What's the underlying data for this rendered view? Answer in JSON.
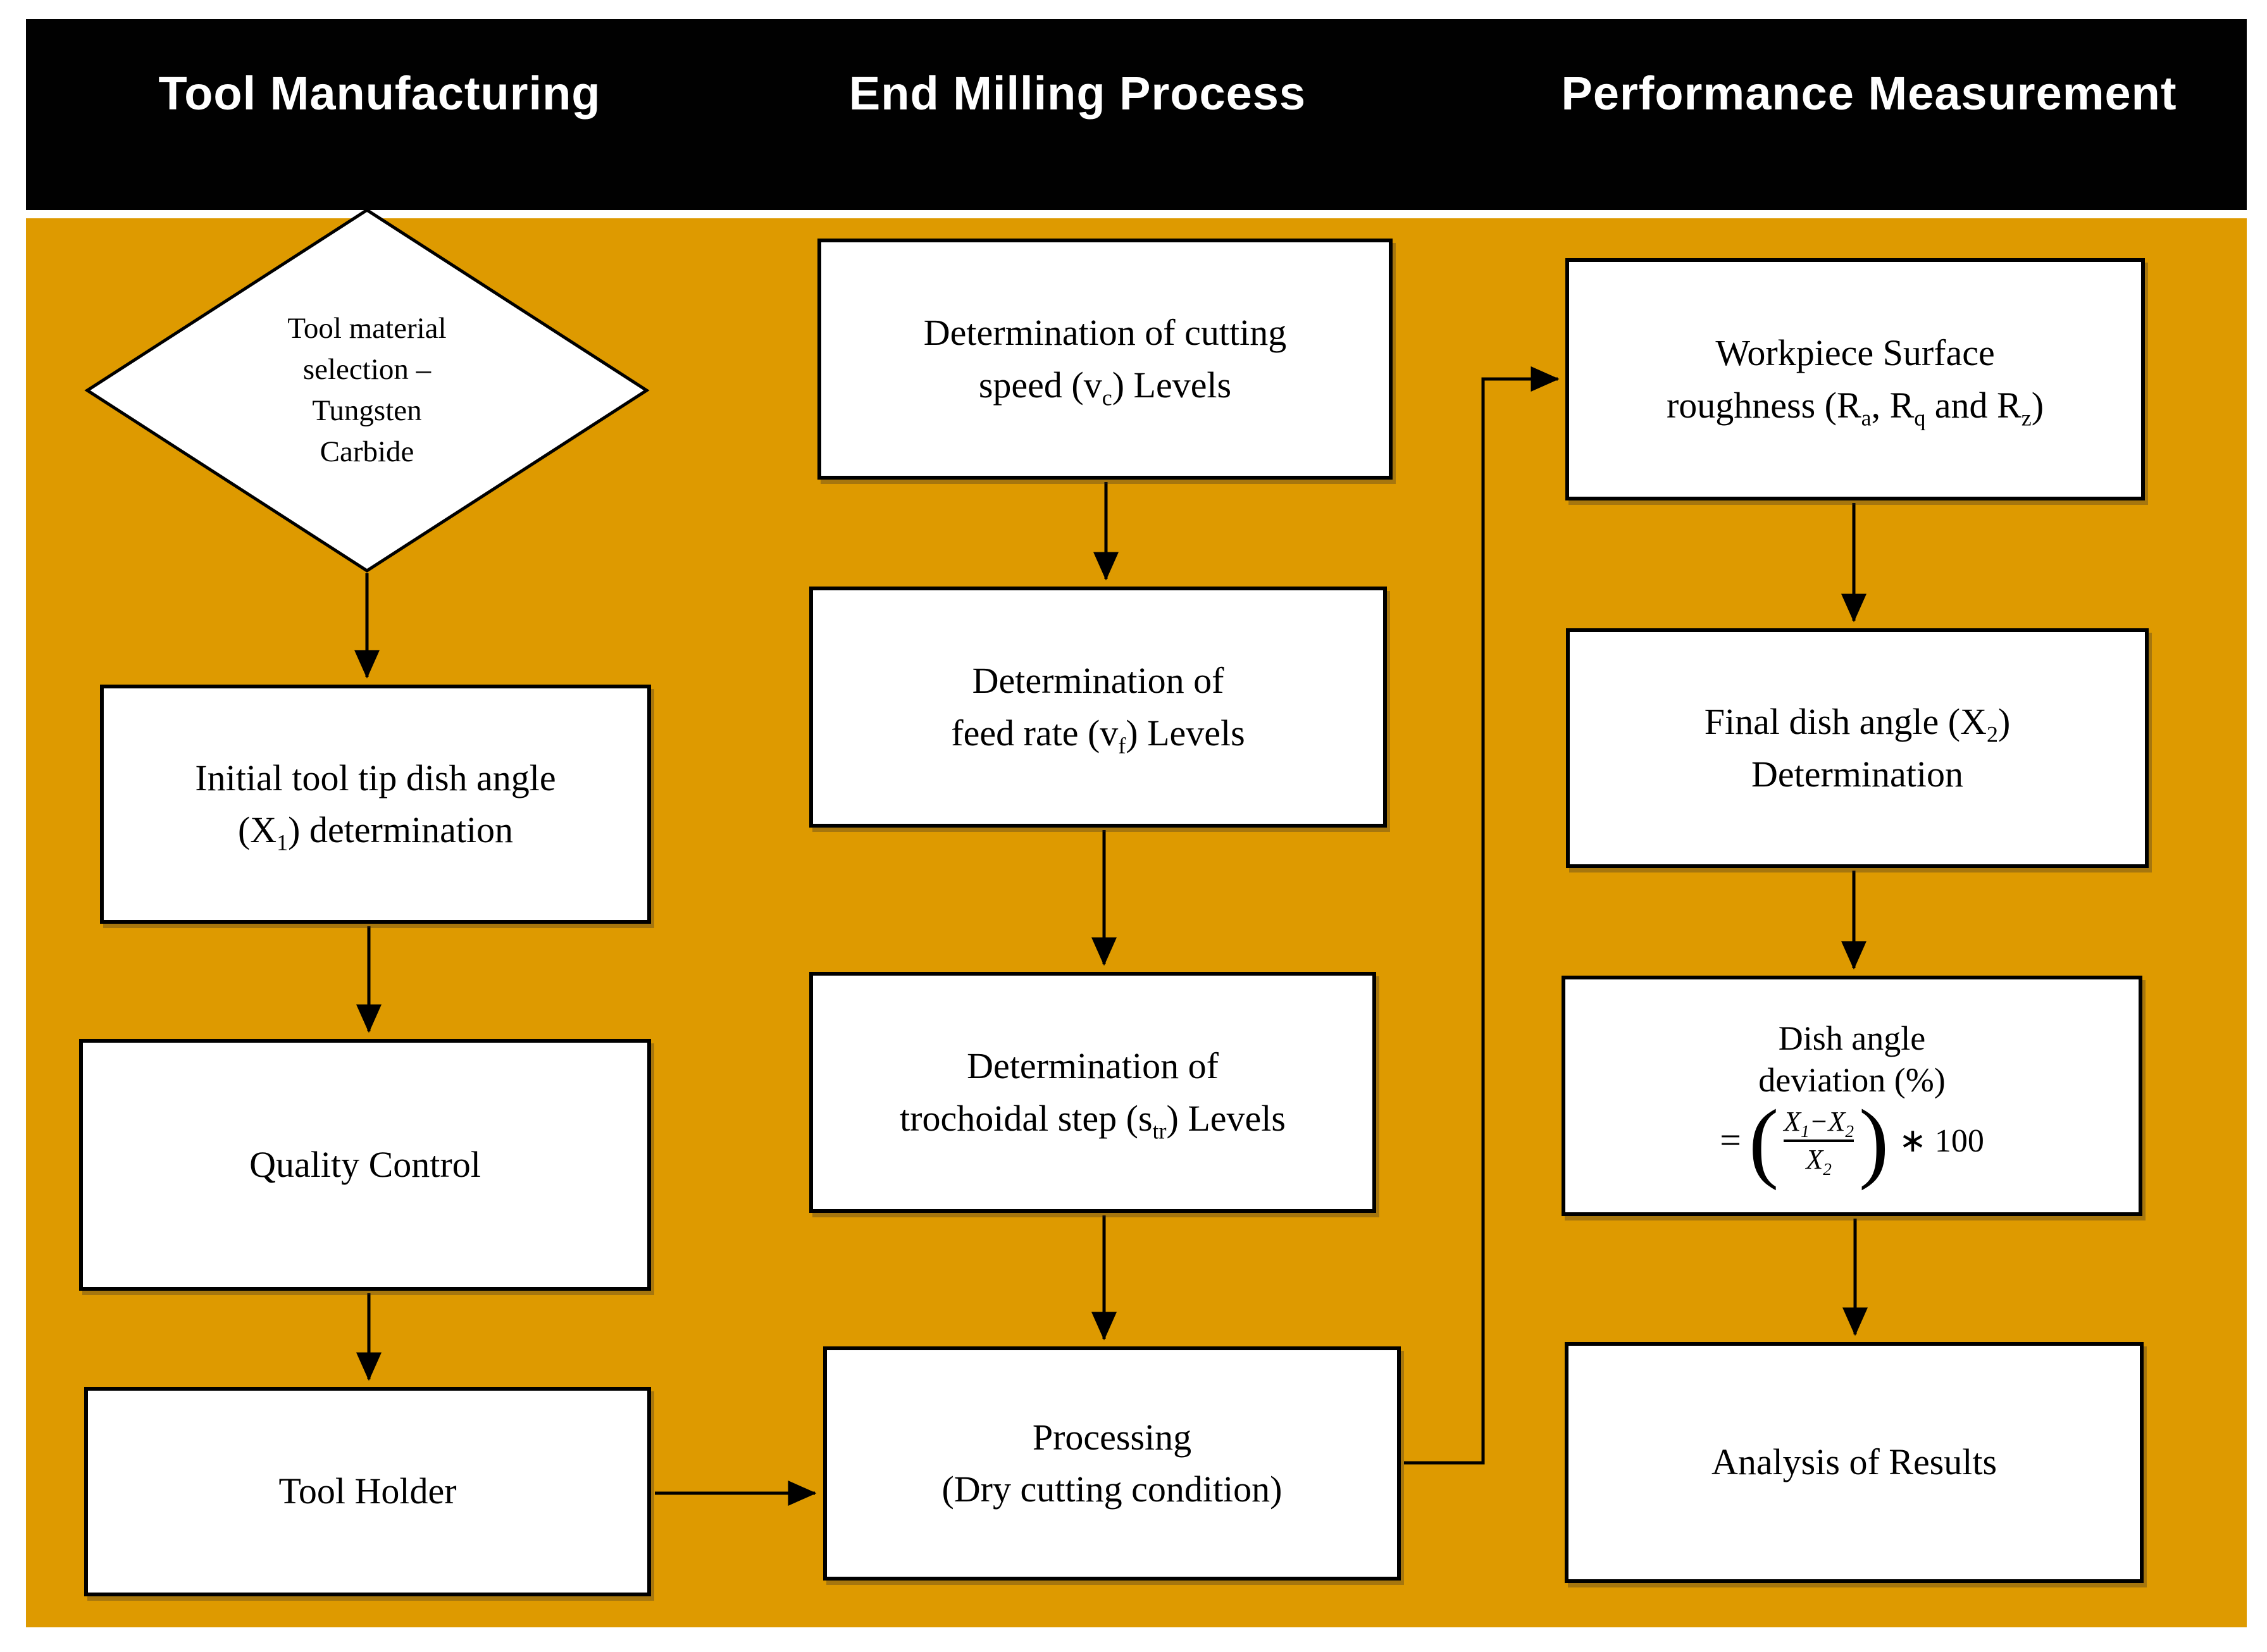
{
  "colors": {
    "header_bar": "#010101",
    "header_text": "#ffffff",
    "canvas": "#ffffff",
    "panel": "#de9a00",
    "box_fill": "#ffffff",
    "box_border": "#000000",
    "arrow": "#000000"
  },
  "header": {
    "columns": [
      "Tool Manufacturing",
      "End Milling Process",
      "Performance Measurement"
    ]
  },
  "nodes": {
    "diamond": {
      "lines": [
        [
          {
            "t": "Tool material"
          }
        ],
        [
          {
            "t": "selection –"
          }
        ],
        [
          {
            "t": "Tungsten"
          }
        ],
        [
          {
            "t": "Carbide"
          }
        ]
      ]
    },
    "initial_angle": {
      "lines": [
        [
          {
            "t": "Initial tool tip dish angle"
          }
        ],
        [
          {
            "t": "(X"
          },
          {
            "t": "1",
            "sub": true
          },
          {
            "t": ") determination"
          }
        ]
      ]
    },
    "quality_control": {
      "lines": [
        [
          {
            "t": "Quality Control"
          }
        ]
      ]
    },
    "tool_holder": {
      "lines": [
        [
          {
            "t": "Tool Holder"
          }
        ]
      ]
    },
    "cutting_speed": {
      "lines": [
        [
          {
            "t": "Determination of cutting"
          }
        ],
        [
          {
            "t": "speed (v"
          },
          {
            "t": "c",
            "sub": true
          },
          {
            "t": ") Levels"
          }
        ]
      ]
    },
    "feed_rate": {
      "lines": [
        [
          {
            "t": "Determination of"
          }
        ],
        [
          {
            "t": "feed rate (v"
          },
          {
            "t": "f",
            "sub": true
          },
          {
            "t": ") Levels"
          }
        ]
      ]
    },
    "trochoidal_step": {
      "lines": [
        [
          {
            "t": "Determination of"
          }
        ],
        [
          {
            "t": "trochoidal step (s"
          },
          {
            "t": "tr",
            "sub": true
          },
          {
            "t": ") Levels"
          }
        ]
      ]
    },
    "processing": {
      "lines": [
        [
          {
            "t": "Processing"
          }
        ],
        [
          {
            "t": "(Dry cutting condition)"
          }
        ]
      ]
    },
    "surface_roughness": {
      "lines": [
        [
          {
            "t": "Workpiece Surface"
          }
        ],
        [
          {
            "t": "roughness (R"
          },
          {
            "t": "a",
            "sub": true
          },
          {
            "t": ", R"
          },
          {
            "t": "q",
            "sub": true
          },
          {
            "t": " and R"
          },
          {
            "t": "z",
            "sub": true
          },
          {
            "t": ")"
          }
        ]
      ]
    },
    "final_dish_angle": {
      "lines": [
        [
          {
            "t": "Final dish angle (X"
          },
          {
            "t": "2",
            "sub": true
          },
          {
            "t": ")"
          }
        ],
        [
          {
            "t": "Determination"
          }
        ]
      ]
    },
    "dish_angle_deviation": {
      "lines": [
        [
          {
            "t": "Dish angle"
          }
        ],
        [
          {
            "t": "deviation (%)"
          }
        ]
      ],
      "formula": {
        "equals": "=",
        "paren_open": "(",
        "paren_close": ")",
        "numerator": [
          {
            "t": "X"
          },
          {
            "t": "1",
            "sub": true
          },
          {
            "t": "−X"
          },
          {
            "t": "2",
            "sub": true
          }
        ],
        "denominator": [
          {
            "t": "X"
          },
          {
            "t": "2",
            "sub": true
          }
        ],
        "multiplier": "∗ 100"
      }
    },
    "analysis": {
      "lines": [
        [
          {
            "t": "Analysis of Results"
          }
        ]
      ]
    }
  }
}
